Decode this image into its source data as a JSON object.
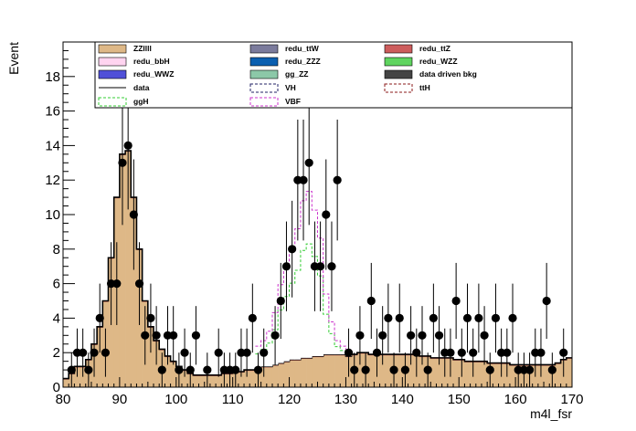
{
  "chart_data": {
    "type": "histogram",
    "xlabel": "m4l_fsr",
    "ylabel": "Event",
    "xlim": [
      80,
      170
    ],
    "ylim": [
      0,
      20
    ],
    "xticks": [
      80,
      90,
      100,
      110,
      120,
      130,
      140,
      150,
      160,
      170
    ],
    "yticks": [
      0,
      2,
      4,
      6,
      8,
      10,
      12,
      14,
      16,
      18
    ],
    "bin_width": 1,
    "legend_position": "top",
    "legend": [
      {
        "name": "ZZllll",
        "style": "fill",
        "color": "#deb887"
      },
      {
        "name": "redu_ttW",
        "style": "fill",
        "color": "#7b7b9c"
      },
      {
        "name": "redu_ttZ",
        "style": "fill",
        "color": "#cd5c5c"
      },
      {
        "name": "redu_bbH",
        "style": "fill",
        "color": "#ffd4f0"
      },
      {
        "name": "redu_ZZZ",
        "style": "fill",
        "color": "#0a5fb0"
      },
      {
        "name": "redu_WZZ",
        "style": "fill",
        "color": "#5fd45f"
      },
      {
        "name": "redu_WWZ",
        "style": "fill",
        "color": "#5050d8"
      },
      {
        "name": "gg_ZZ",
        "style": "fill",
        "color": "#8cc8a8"
      },
      {
        "name": "data driven bkg",
        "style": "fill",
        "color": "#444444"
      },
      {
        "name": "data",
        "style": "line",
        "color": "#000000"
      },
      {
        "name": "VH",
        "style": "dashed",
        "color": "#222266"
      },
      {
        "name": "ttH",
        "style": "dashed",
        "color": "#8b1a1a"
      },
      {
        "name": "ggH",
        "style": "dashed",
        "color": "#33cc33"
      },
      {
        "name": "VBF",
        "style": "dashed",
        "color": "#cc33cc"
      }
    ],
    "stack_total": {
      "bin_edges_start": 80,
      "values": [
        0.5,
        0.8,
        1.2,
        1.2,
        1.6,
        2.5,
        3.5,
        5,
        7.5,
        11,
        13.5,
        13.7,
        11,
        8,
        5,
        3.5,
        2.7,
        2.2,
        1.8,
        1.5,
        1.2,
        1,
        0.8,
        0.7,
        0.7,
        0.7,
        0.7,
        0.7,
        0.8,
        0.8,
        0.9,
        0.9,
        1,
        1,
        1.1,
        1.2,
        1.2,
        1.3,
        1.4,
        1.5,
        1.6,
        1.6,
        1.7,
        1.7,
        1.8,
        1.8,
        1.9,
        1.9,
        1.9,
        1.9,
        1.8,
        1.9,
        2,
        2,
        1.9,
        1.9,
        1.9,
        1.9,
        1.9,
        1.9,
        1.9,
        1.9,
        1.9,
        1.8,
        1.8,
        1.7,
        1.7,
        1.7,
        1.7,
        1.6,
        1.6,
        1.5,
        1.5,
        1.5,
        1.5,
        1.4,
        1.4,
        1.4,
        1.4,
        1.3,
        1.3,
        1.3,
        1.3,
        1.3,
        1.3,
        1.3,
        1.3,
        1.4,
        1.6,
        1.7
      ]
    },
    "signal_total": {
      "x_range": [
        114,
        131
      ],
      "values": [
        2.2,
        2.5,
        3,
        4,
        5.5,
        6.5,
        7.5,
        8.5,
        10,
        10.5,
        9.5,
        8,
        5,
        3.5,
        2.5,
        2.2,
        2
      ]
    },
    "data_points": [
      {
        "x": 81.5,
        "y": 1,
        "err": 1
      },
      {
        "x": 82.5,
        "y": 2,
        "err": 1.4
      },
      {
        "x": 83.5,
        "y": 2,
        "err": 1.4
      },
      {
        "x": 84.5,
        "y": 1,
        "err": 1
      },
      {
        "x": 85.5,
        "y": 2,
        "err": 1.4
      },
      {
        "x": 86.5,
        "y": 4,
        "err": 2
      },
      {
        "x": 87.5,
        "y": 2,
        "err": 1.4
      },
      {
        "x": 88.5,
        "y": 6,
        "err": 2.4
      },
      {
        "x": 89.5,
        "y": 6,
        "err": 2.4
      },
      {
        "x": 90.5,
        "y": 13,
        "err": 3.6
      },
      {
        "x": 91.5,
        "y": 14,
        "err": 3.7
      },
      {
        "x": 92.5,
        "y": 10,
        "err": 3.2
      },
      {
        "x": 93.5,
        "y": 6,
        "err": 2.4
      },
      {
        "x": 94.5,
        "y": 3,
        "err": 1.7
      },
      {
        "x": 95.5,
        "y": 4,
        "err": 2
      },
      {
        "x": 96.5,
        "y": 3,
        "err": 1.7
      },
      {
        "x": 97.5,
        "y": 1,
        "err": 1
      },
      {
        "x": 98.5,
        "y": 3,
        "err": 1.7
      },
      {
        "x": 99.5,
        "y": 3,
        "err": 1.7
      },
      {
        "x": 100.5,
        "y": 1,
        "err": 1
      },
      {
        "x": 101.5,
        "y": 2,
        "err": 1.4
      },
      {
        "x": 102.5,
        "y": 1,
        "err": 1
      },
      {
        "x": 103.5,
        "y": 3,
        "err": 1.7
      },
      {
        "x": 105.5,
        "y": 1,
        "err": 1
      },
      {
        "x": 107.5,
        "y": 2,
        "err": 1.4
      },
      {
        "x": 108.5,
        "y": 1,
        "err": 1
      },
      {
        "x": 109.5,
        "y": 1,
        "err": 1
      },
      {
        "x": 110.5,
        "y": 1,
        "err": 1
      },
      {
        "x": 111.5,
        "y": 2,
        "err": 1.4
      },
      {
        "x": 112.5,
        "y": 2,
        "err": 1.4
      },
      {
        "x": 113.5,
        "y": 4,
        "err": 2
      },
      {
        "x": 114.5,
        "y": 1,
        "err": 1
      },
      {
        "x": 115.5,
        "y": 2,
        "err": 1.4
      },
      {
        "x": 117.5,
        "y": 3,
        "err": 1.7
      },
      {
        "x": 118.5,
        "y": 5,
        "err": 2.2
      },
      {
        "x": 119.5,
        "y": 7,
        "err": 2.6
      },
      {
        "x": 120.5,
        "y": 8,
        "err": 2.8
      },
      {
        "x": 121.5,
        "y": 12,
        "err": 3.5
      },
      {
        "x": 122.5,
        "y": 12,
        "err": 3.5
      },
      {
        "x": 123.5,
        "y": 13,
        "err": 3.6
      },
      {
        "x": 124.5,
        "y": 7,
        "err": 2.6
      },
      {
        "x": 125.5,
        "y": 7,
        "err": 2.6
      },
      {
        "x": 126.5,
        "y": 10,
        "err": 3.2
      },
      {
        "x": 127.5,
        "y": 7,
        "err": 2.6
      },
      {
        "x": 128.5,
        "y": 12,
        "err": 3.5
      },
      {
        "x": 130.5,
        "y": 2,
        "err": 1.4
      },
      {
        "x": 131.5,
        "y": 1,
        "err": 1
      },
      {
        "x": 132.5,
        "y": 3,
        "err": 1.7
      },
      {
        "x": 133.5,
        "y": 1,
        "err": 1
      },
      {
        "x": 134.5,
        "y": 5,
        "err": 2.2
      },
      {
        "x": 135.5,
        "y": 2,
        "err": 1.4
      },
      {
        "x": 136.5,
        "y": 3,
        "err": 1.7
      },
      {
        "x": 137.5,
        "y": 4,
        "err": 2
      },
      {
        "x": 138.5,
        "y": 1,
        "err": 1
      },
      {
        "x": 139.5,
        "y": 4,
        "err": 2
      },
      {
        "x": 140.5,
        "y": 1,
        "err": 1
      },
      {
        "x": 141.5,
        "y": 3,
        "err": 1.7
      },
      {
        "x": 142.5,
        "y": 2,
        "err": 1.4
      },
      {
        "x": 143.5,
        "y": 3,
        "err": 1.7
      },
      {
        "x": 144.5,
        "y": 1,
        "err": 1
      },
      {
        "x": 145.5,
        "y": 4,
        "err": 2
      },
      {
        "x": 146.5,
        "y": 3,
        "err": 1.7
      },
      {
        "x": 147.5,
        "y": 2,
        "err": 1.4
      },
      {
        "x": 148.5,
        "y": 2,
        "err": 1.4
      },
      {
        "x": 149.5,
        "y": 5,
        "err": 2.2
      },
      {
        "x": 150.5,
        "y": 2,
        "err": 1.4
      },
      {
        "x": 151.5,
        "y": 4,
        "err": 2
      },
      {
        "x": 152.5,
        "y": 2,
        "err": 1.4
      },
      {
        "x": 153.5,
        "y": 4,
        "err": 2
      },
      {
        "x": 154.5,
        "y": 3,
        "err": 1.7
      },
      {
        "x": 155.5,
        "y": 1,
        "err": 1
      },
      {
        "x": 156.5,
        "y": 4,
        "err": 2
      },
      {
        "x": 157.5,
        "y": 2,
        "err": 1.4
      },
      {
        "x": 158.5,
        "y": 2,
        "err": 1.4
      },
      {
        "x": 159.5,
        "y": 4,
        "err": 2
      },
      {
        "x": 160.5,
        "y": 1,
        "err": 1
      },
      {
        "x": 161.5,
        "y": 1,
        "err": 1
      },
      {
        "x": 162.5,
        "y": 1,
        "err": 1
      },
      {
        "x": 163.5,
        "y": 2,
        "err": 1.4
      },
      {
        "x": 164.5,
        "y": 2,
        "err": 1.4
      },
      {
        "x": 165.5,
        "y": 5,
        "err": 2.2
      },
      {
        "x": 166.5,
        "y": 1,
        "err": 1
      },
      {
        "x": 168.5,
        "y": 2,
        "err": 1.4
      }
    ]
  }
}
